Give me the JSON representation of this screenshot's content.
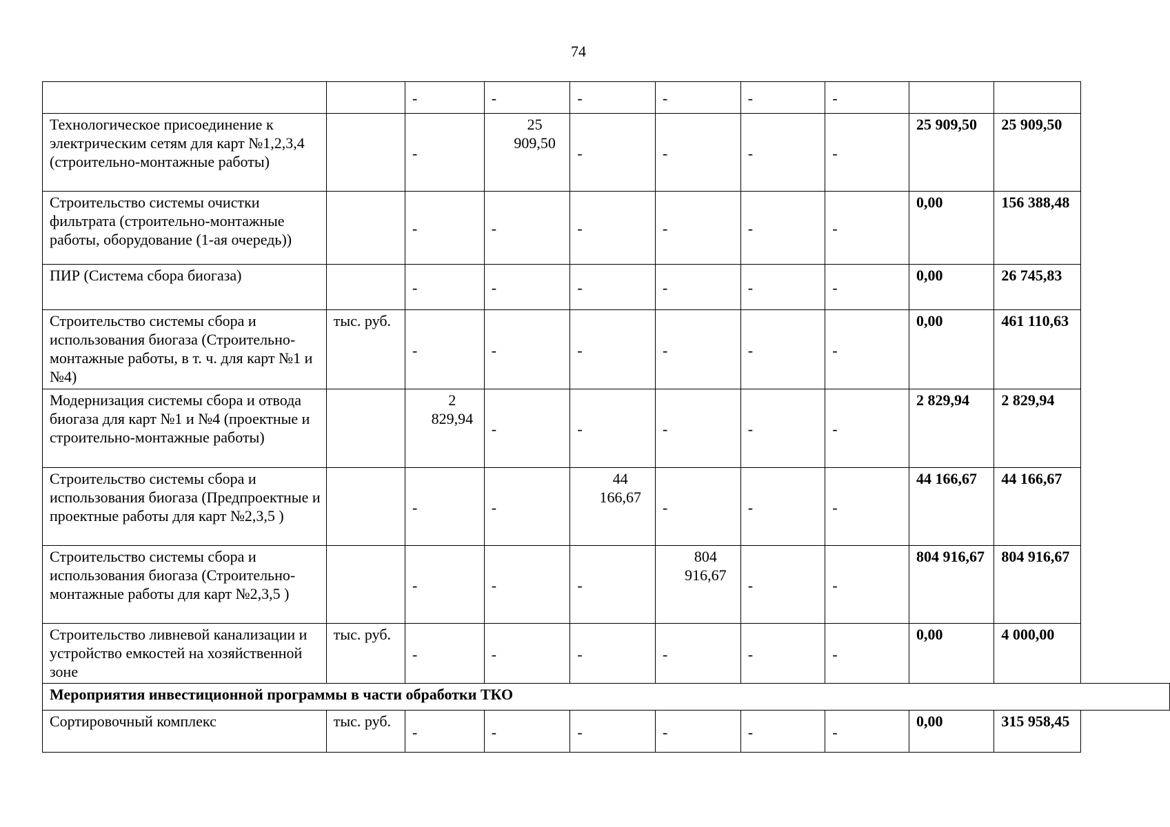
{
  "page_number": "74",
  "rows": [
    {
      "name": "",
      "unit": "",
      "years": [
        "-",
        "-",
        "-",
        "-",
        "-",
        "-"
      ],
      "total1": "",
      "total2": ""
    },
    {
      "name": "Технологическое присоединение к электрическим сетям для карт №1,2,3,4 (строительно-монтажные работы)",
      "unit": "",
      "years": [
        "-",
        "25 909,50",
        "-",
        "-",
        "-",
        "-"
      ],
      "total1": "25 909,50",
      "total2": "25 909,50"
    },
    {
      "name": "Строительство системы очистки фильтрата (строительно-монтажные работы, оборудование (1-ая очередь))",
      "unit": "",
      "years": [
        "-",
        "-",
        "-",
        "-",
        "-",
        "-"
      ],
      "total1": "0,00",
      "total2": "156 388,48"
    },
    {
      "name": "ПИР (Система сбора биогаза)",
      "unit": "",
      "years": [
        "-",
        "-",
        "-",
        "-",
        "-",
        "-"
      ],
      "total1": "0,00",
      "total2": "26 745,83"
    },
    {
      "name": "Строительство системы сбора и использования биогаза (Строительно-монтажные работы, в т. ч. для карт №1 и №4)",
      "unit": "тыс. руб.",
      "years": [
        "-",
        "-",
        "-",
        "-",
        "-",
        "-"
      ],
      "total1": "0,00",
      "total2": "461 110,63"
    },
    {
      "name": "Модернизация системы сбора и отвода биогаза для карт №1 и №4 (проектные и строительно-монтажные работы)",
      "unit": "",
      "years": [
        "2 829,94",
        "-",
        "-",
        "-",
        "-",
        "-"
      ],
      "total1": "2 829,94",
      "total2": "2 829,94"
    },
    {
      "name": "Строительство системы сбора и использования биогаза (Предпроектные и проектные работы для карт №2,3,5 )",
      "unit": "",
      "years": [
        "-",
        "-",
        "44 166,67",
        "-",
        "-",
        "-"
      ],
      "total1": "44 166,67",
      "total2": "44 166,67"
    },
    {
      "name": "Строительство системы сбора и использования биогаза (Строительно-монтажные работы для карт №2,3,5 )",
      "unit": "",
      "years": [
        "-",
        "-",
        "-",
        "804 916,67",
        "-",
        "-"
      ],
      "total1": "804 916,67",
      "total2": "804 916,67"
    },
    {
      "name": "Строительство ливневой канализации и устройство емкостей на хозяйственной зоне",
      "unit": "тыс. руб.",
      "years": [
        "-",
        "-",
        "-",
        "-",
        "-",
        "-"
      ],
      "total1": "0,00",
      "total2": "4 000,00"
    },
    {
      "section": "Мероприятия инвестиционной программы в части обработки ТКО"
    },
    {
      "name": "Сортировочный комплекс",
      "unit": "тыс. руб.",
      "years": [
        "-",
        "-",
        "-",
        "-",
        "-",
        "-"
      ],
      "total1": "0,00",
      "total2": "315 958,45"
    }
  ]
}
